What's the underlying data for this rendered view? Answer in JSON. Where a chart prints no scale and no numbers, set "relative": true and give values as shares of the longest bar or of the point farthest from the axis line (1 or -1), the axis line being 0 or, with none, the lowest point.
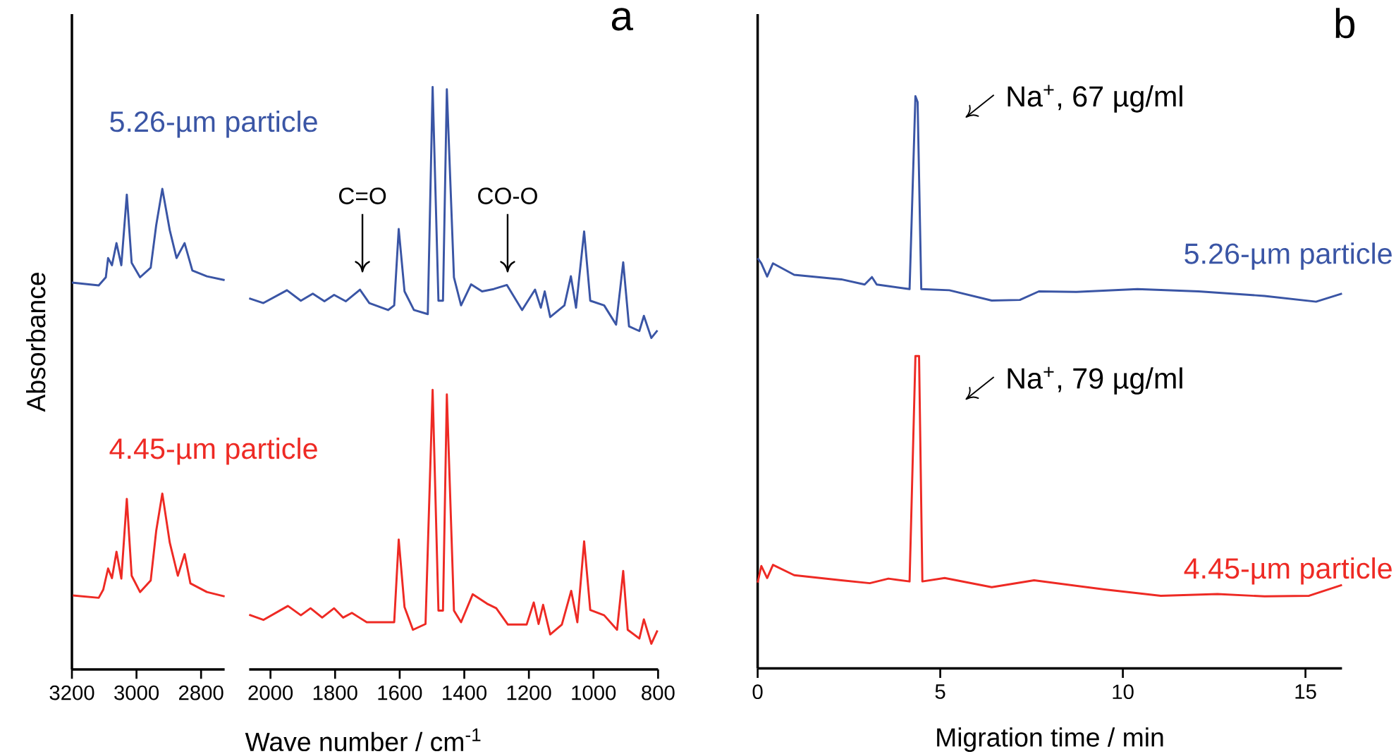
{
  "chart_data": [
    {
      "type": "line",
      "ylabel": "Absorbance",
      "relative": true,
      "xlim": [
        3200,
        2727
      ],
      "xticks": [
        3200,
        3000,
        2800
      ],
      "series": [
        {
          "name": "5.26-µm particle",
          "color": "#3a55a5",
          "x": [
            3200,
            3117,
            3095,
            3088,
            3076,
            3062,
            3047,
            3030,
            3015,
            2989,
            2956,
            2939,
            2920,
            2897,
            2876,
            2851,
            2827,
            2782,
            2727
          ],
          "values": [
            0.805,
            0.799,
            0.816,
            0.856,
            0.841,
            0.887,
            0.841,
            0.988,
            0.846,
            0.816,
            0.836,
            0.924,
            1.0,
            0.914,
            0.856,
            0.887,
            0.83,
            0.818,
            0.81
          ]
        },
        {
          "name": "4.45-µm particle",
          "color": "#ee2a24",
          "x": [
            3197,
            3117,
            3103,
            3088,
            3076,
            3062,
            3047,
            3030,
            3015,
            2989,
            2956,
            2939,
            2920,
            2897,
            2872,
            2851,
            2833,
            2782,
            2727
          ],
          "values": [
            0.154,
            0.149,
            0.166,
            0.21,
            0.19,
            0.245,
            0.189,
            0.355,
            0.195,
            0.161,
            0.185,
            0.288,
            0.366,
            0.264,
            0.195,
            0.24,
            0.179,
            0.161,
            0.152
          ]
        }
      ]
    },
    {
      "type": "line",
      "title": "a",
      "xlabel": "Wave number / cm$^{-1}$",
      "relative": true,
      "xlim": [
        2066,
        800
      ],
      "xticks": [
        2000,
        1800,
        1600,
        1400,
        1200,
        1000,
        800
      ],
      "series": [
        {
          "color": "#3a55a5",
          "x": [
            2066,
            2022,
            1949,
            1906,
            1869,
            1833,
            1803,
            1767,
            1723,
            1694,
            1636,
            1617,
            1603,
            1585,
            1556,
            1513,
            1498,
            1480,
            1466,
            1454,
            1432,
            1410,
            1379,
            1345,
            1309,
            1268,
            1221,
            1181,
            1163,
            1151,
            1134,
            1090,
            1070,
            1054,
            1029,
            1010,
            967,
            930,
            908,
            890,
            858,
            844,
            821,
            802
          ],
          "values": [
            0.637,
            0.629,
            0.651,
            0.633,
            0.645,
            0.632,
            0.643,
            0.632,
            0.652,
            0.629,
            0.617,
            0.625,
            0.756,
            0.649,
            0.617,
            0.61,
            1.0,
            0.633,
            0.633,
            0.996,
            0.673,
            0.625,
            0.661,
            0.649,
            0.653,
            0.66,
            0.617,
            0.652,
            0.621,
            0.649,
            0.605,
            0.625,
            0.675,
            0.621,
            0.752,
            0.633,
            0.625,
            0.592,
            0.699,
            0.589,
            0.581,
            0.607,
            0.569,
            0.582
          ]
        },
        {
          "color": "#ee2a24",
          "x": [
            2066,
            2022,
            1946,
            1906,
            1876,
            1840,
            1803,
            1775,
            1748,
            1702,
            1644,
            1617,
            1603,
            1585,
            1559,
            1520,
            1498,
            1480,
            1466,
            1454,
            1432,
            1410,
            1374,
            1330,
            1301,
            1265,
            1207,
            1185,
            1170,
            1156,
            1134,
            1098,
            1069,
            1050,
            1029,
            1010,
            967,
            927,
            908,
            894,
            858,
            844,
            821,
            802
          ],
          "values": [
            0.094,
            0.085,
            0.109,
            0.093,
            0.105,
            0.089,
            0.105,
            0.089,
            0.097,
            0.081,
            0.081,
            0.081,
            0.223,
            0.107,
            0.068,
            0.078,
            0.48,
            0.101,
            0.101,
            0.472,
            0.101,
            0.081,
            0.129,
            0.113,
            0.105,
            0.077,
            0.077,
            0.115,
            0.078,
            0.111,
            0.06,
            0.077,
            0.135,
            0.081,
            0.22,
            0.102,
            0.093,
            0.068,
            0.169,
            0.068,
            0.053,
            0.086,
            0.044,
            0.067
          ]
        }
      ],
      "annotations": [
        "C=O",
        "CO-O"
      ]
    },
    {
      "type": "line",
      "title": "b",
      "xlabel": "Migration time / min",
      "relative": true,
      "xlim": [
        0,
        16
      ],
      "xticks": [
        0,
        5,
        10,
        15
      ],
      "series": [
        {
          "name": "5.26-µm particle",
          "color": "#3a55a5",
          "x": [
            0,
            0.1,
            0.26,
            0.42,
            1.0,
            2.29,
            2.93,
            3.13,
            3.26,
            4.16,
            4.32,
            4.38,
            4.48,
            5.25,
            6.41,
            7.18,
            7.7,
            8.73,
            10.4,
            12.07,
            13.88,
            15.29,
            16.0
          ],
          "values": [
            0.717,
            0.708,
            0.685,
            0.708,
            0.688,
            0.68,
            0.671,
            0.684,
            0.671,
            0.663,
            1.0,
            0.99,
            0.663,
            0.661,
            0.643,
            0.644,
            0.659,
            0.658,
            0.663,
            0.659,
            0.651,
            0.641,
            0.655
          ]
        },
        {
          "name": "4.45-µm particle",
          "color": "#ee2a24",
          "x": [
            0,
            0.1,
            0.26,
            0.42,
            1.0,
            2.29,
            3.07,
            3.58,
            4.16,
            4.32,
            4.42,
            4.51,
            5.12,
            6.41,
            7.57,
            9.5,
            11.04,
            12.59,
            13.88,
            15.1,
            16.0
          ],
          "values": [
            0.15,
            0.179,
            0.158,
            0.181,
            0.163,
            0.154,
            0.149,
            0.157,
            0.152,
            0.546,
            0.546,
            0.152,
            0.158,
            0.142,
            0.154,
            0.138,
            0.127,
            0.13,
            0.126,
            0.127,
            0.146
          ]
        }
      ],
      "annotations": [
        "Na$^{+}$, 67 µg/ml",
        "Na$^{+}$, 79 µg/ml"
      ]
    }
  ]
}
